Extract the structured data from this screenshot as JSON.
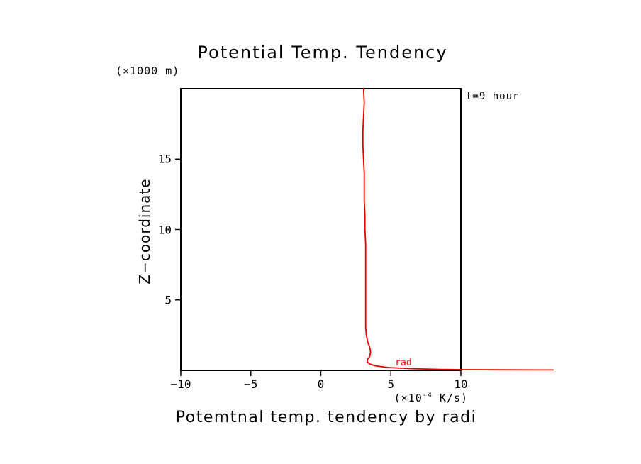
{
  "page": {
    "background": "#ffffff"
  },
  "chart_data": {
    "type": "line",
    "title": "Potential Temp. Tendency",
    "caption": "Potemtnal temp. tendency by radi",
    "annotation": "t=9 hour",
    "ylabel": "Z−coordinate",
    "y_unit_label": "(×1000 m)",
    "x_unit_prefix": "(×10",
    "x_unit_sup": "-4",
    "x_unit_suffix": " K/s)",
    "xlim": [
      -10,
      10
    ],
    "ylim": [
      0,
      20
    ],
    "x_ticks": [
      -10,
      -5,
      0,
      5,
      10
    ],
    "y_ticks": [
      5,
      10,
      15
    ],
    "grid": false,
    "legend_position": "on-line-bottom-right",
    "frame_color": "#000000",
    "series": [
      {
        "name": "rad",
        "color": "#e60000",
        "label_pos": {
          "x": 5.3,
          "z": 0.5
        },
        "points": [
          [
            3.05,
            20
          ],
          [
            3.1,
            19
          ],
          [
            3.05,
            18
          ],
          [
            3.0,
            17
          ],
          [
            3.0,
            16
          ],
          [
            3.05,
            15
          ],
          [
            3.1,
            14
          ],
          [
            3.1,
            13
          ],
          [
            3.1,
            12
          ],
          [
            3.15,
            11
          ],
          [
            3.15,
            10
          ],
          [
            3.2,
            9
          ],
          [
            3.2,
            8
          ],
          [
            3.2,
            7
          ],
          [
            3.2,
            6
          ],
          [
            3.2,
            5
          ],
          [
            3.2,
            4
          ],
          [
            3.2,
            3
          ],
          [
            3.25,
            2.5
          ],
          [
            3.35,
            2
          ],
          [
            3.5,
            1.6
          ],
          [
            3.55,
            1.3
          ],
          [
            3.5,
            1.0
          ],
          [
            3.35,
            0.8
          ],
          [
            3.3,
            0.6
          ],
          [
            3.5,
            0.45
          ],
          [
            3.9,
            0.32
          ],
          [
            4.8,
            0.2
          ],
          [
            6.5,
            0.12
          ],
          [
            8.5,
            0.07
          ],
          [
            10.0,
            0.05
          ],
          [
            12.5,
            0.04
          ],
          [
            16.6,
            0.03
          ]
        ]
      }
    ]
  }
}
